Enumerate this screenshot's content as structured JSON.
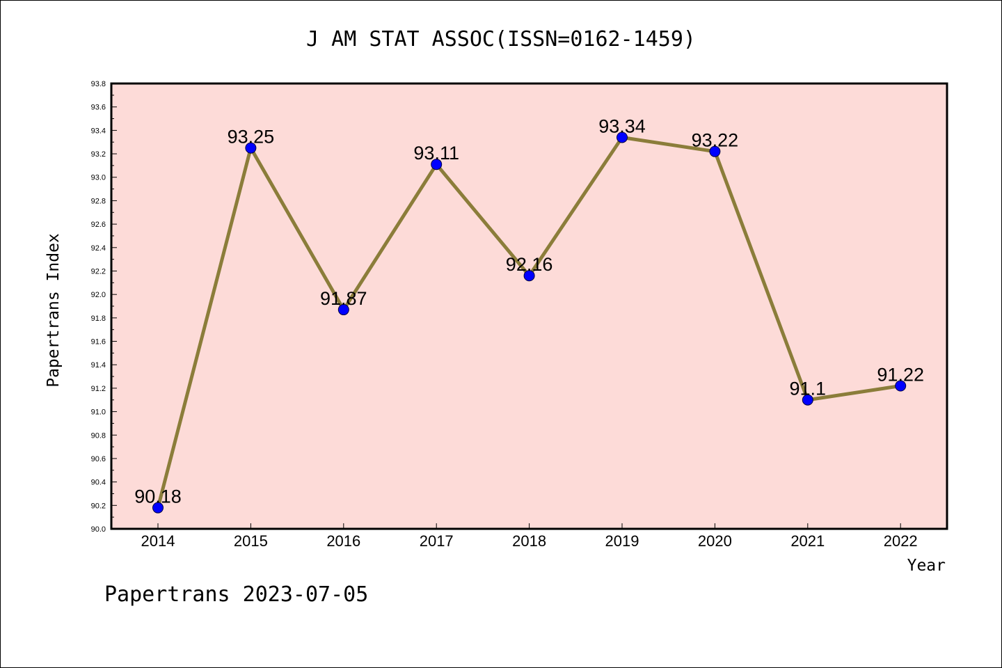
{
  "chart_data": {
    "type": "line",
    "title": "J AM STAT ASSOC(ISSN=0162-1459)",
    "xlabel": "Year",
    "ylabel": "Papertrans Index",
    "categories": [
      "2014",
      "2015",
      "2016",
      "2017",
      "2018",
      "2019",
      "2020",
      "2021",
      "2022"
    ],
    "series": [
      {
        "values": [
          90.18,
          93.25,
          91.87,
          93.11,
          92.16,
          93.34,
          93.22,
          91.1,
          91.22
        ],
        "labels": [
          "90.18",
          "93.25",
          "91.87",
          "93.11",
          "92.16",
          "93.34",
          "93.22",
          "91.1",
          "91.22"
        ]
      }
    ],
    "ylim": [
      90.0,
      93.8
    ],
    "yticks": [
      "90.0",
      "90.2",
      "90.4",
      "90.6",
      "90.8",
      "91.0",
      "91.2",
      "91.4",
      "91.6",
      "91.8",
      "92.0",
      "92.2",
      "92.4",
      "92.6",
      "92.8",
      "93.0",
      "93.2",
      "93.4",
      "93.6",
      "93.8"
    ],
    "grid": false,
    "colors": {
      "plot_background": "#fddbd8",
      "line": "#8b7d3a",
      "marker": "#0000ff"
    }
  },
  "footer": "Papertrans 2023-07-05"
}
